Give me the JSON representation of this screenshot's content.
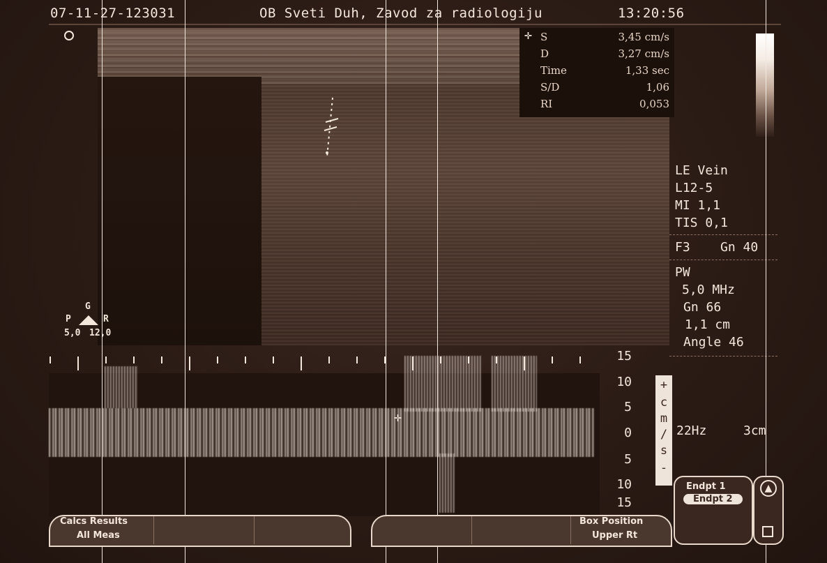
{
  "header": {
    "patient_id": "07-11-27-123031",
    "institution": "OB Sveti Duh, Zavod za radiologiju",
    "time": "13:20:56"
  },
  "measurements": [
    {
      "label": "S",
      "value": "3,45 cm/s"
    },
    {
      "label": "D",
      "value": "3,27 cm/s"
    },
    {
      "label": "Time",
      "value": "1,33 sec"
    },
    {
      "label": "S/D",
      "value": "1,06"
    },
    {
      "label": "RI",
      "value": "0,053"
    }
  ],
  "imaging_info": {
    "preset": "LE Vein",
    "transducer": "L12-5",
    "mi": "MI 1,1",
    "tis": "TIS 0,1",
    "f_gain": "F3    Gn 40"
  },
  "doppler_info": {
    "mode": "PW",
    "frequency": "5,0 MHz",
    "gain": "Gn 66",
    "sample_volume": "1,1 cm",
    "angle": "Angle 46",
    "prf": "22Hz",
    "depth": "3cm"
  },
  "probe_orientation": {
    "top": "G",
    "left": "P",
    "right": "R",
    "left_value": "5,0",
    "right_value": "12,0"
  },
  "velocity_scale": {
    "labels": [
      "15",
      "10",
      "5",
      "0",
      "5",
      "10",
      "15"
    ],
    "unit_chars": [
      "+",
      "c",
      "m",
      "/",
      "s",
      "-"
    ]
  },
  "softkeys": {
    "calcs_results": "Calcs Results",
    "all_meas": "All Meas",
    "box_position": "Box Position",
    "upper_rt": "Upper Rt"
  },
  "endpoints": {
    "endpt1": "Endpt 1",
    "endpt2": "Endpt 2"
  },
  "colors": {
    "background": "#2a1a14",
    "text": "#f3e6da"
  }
}
